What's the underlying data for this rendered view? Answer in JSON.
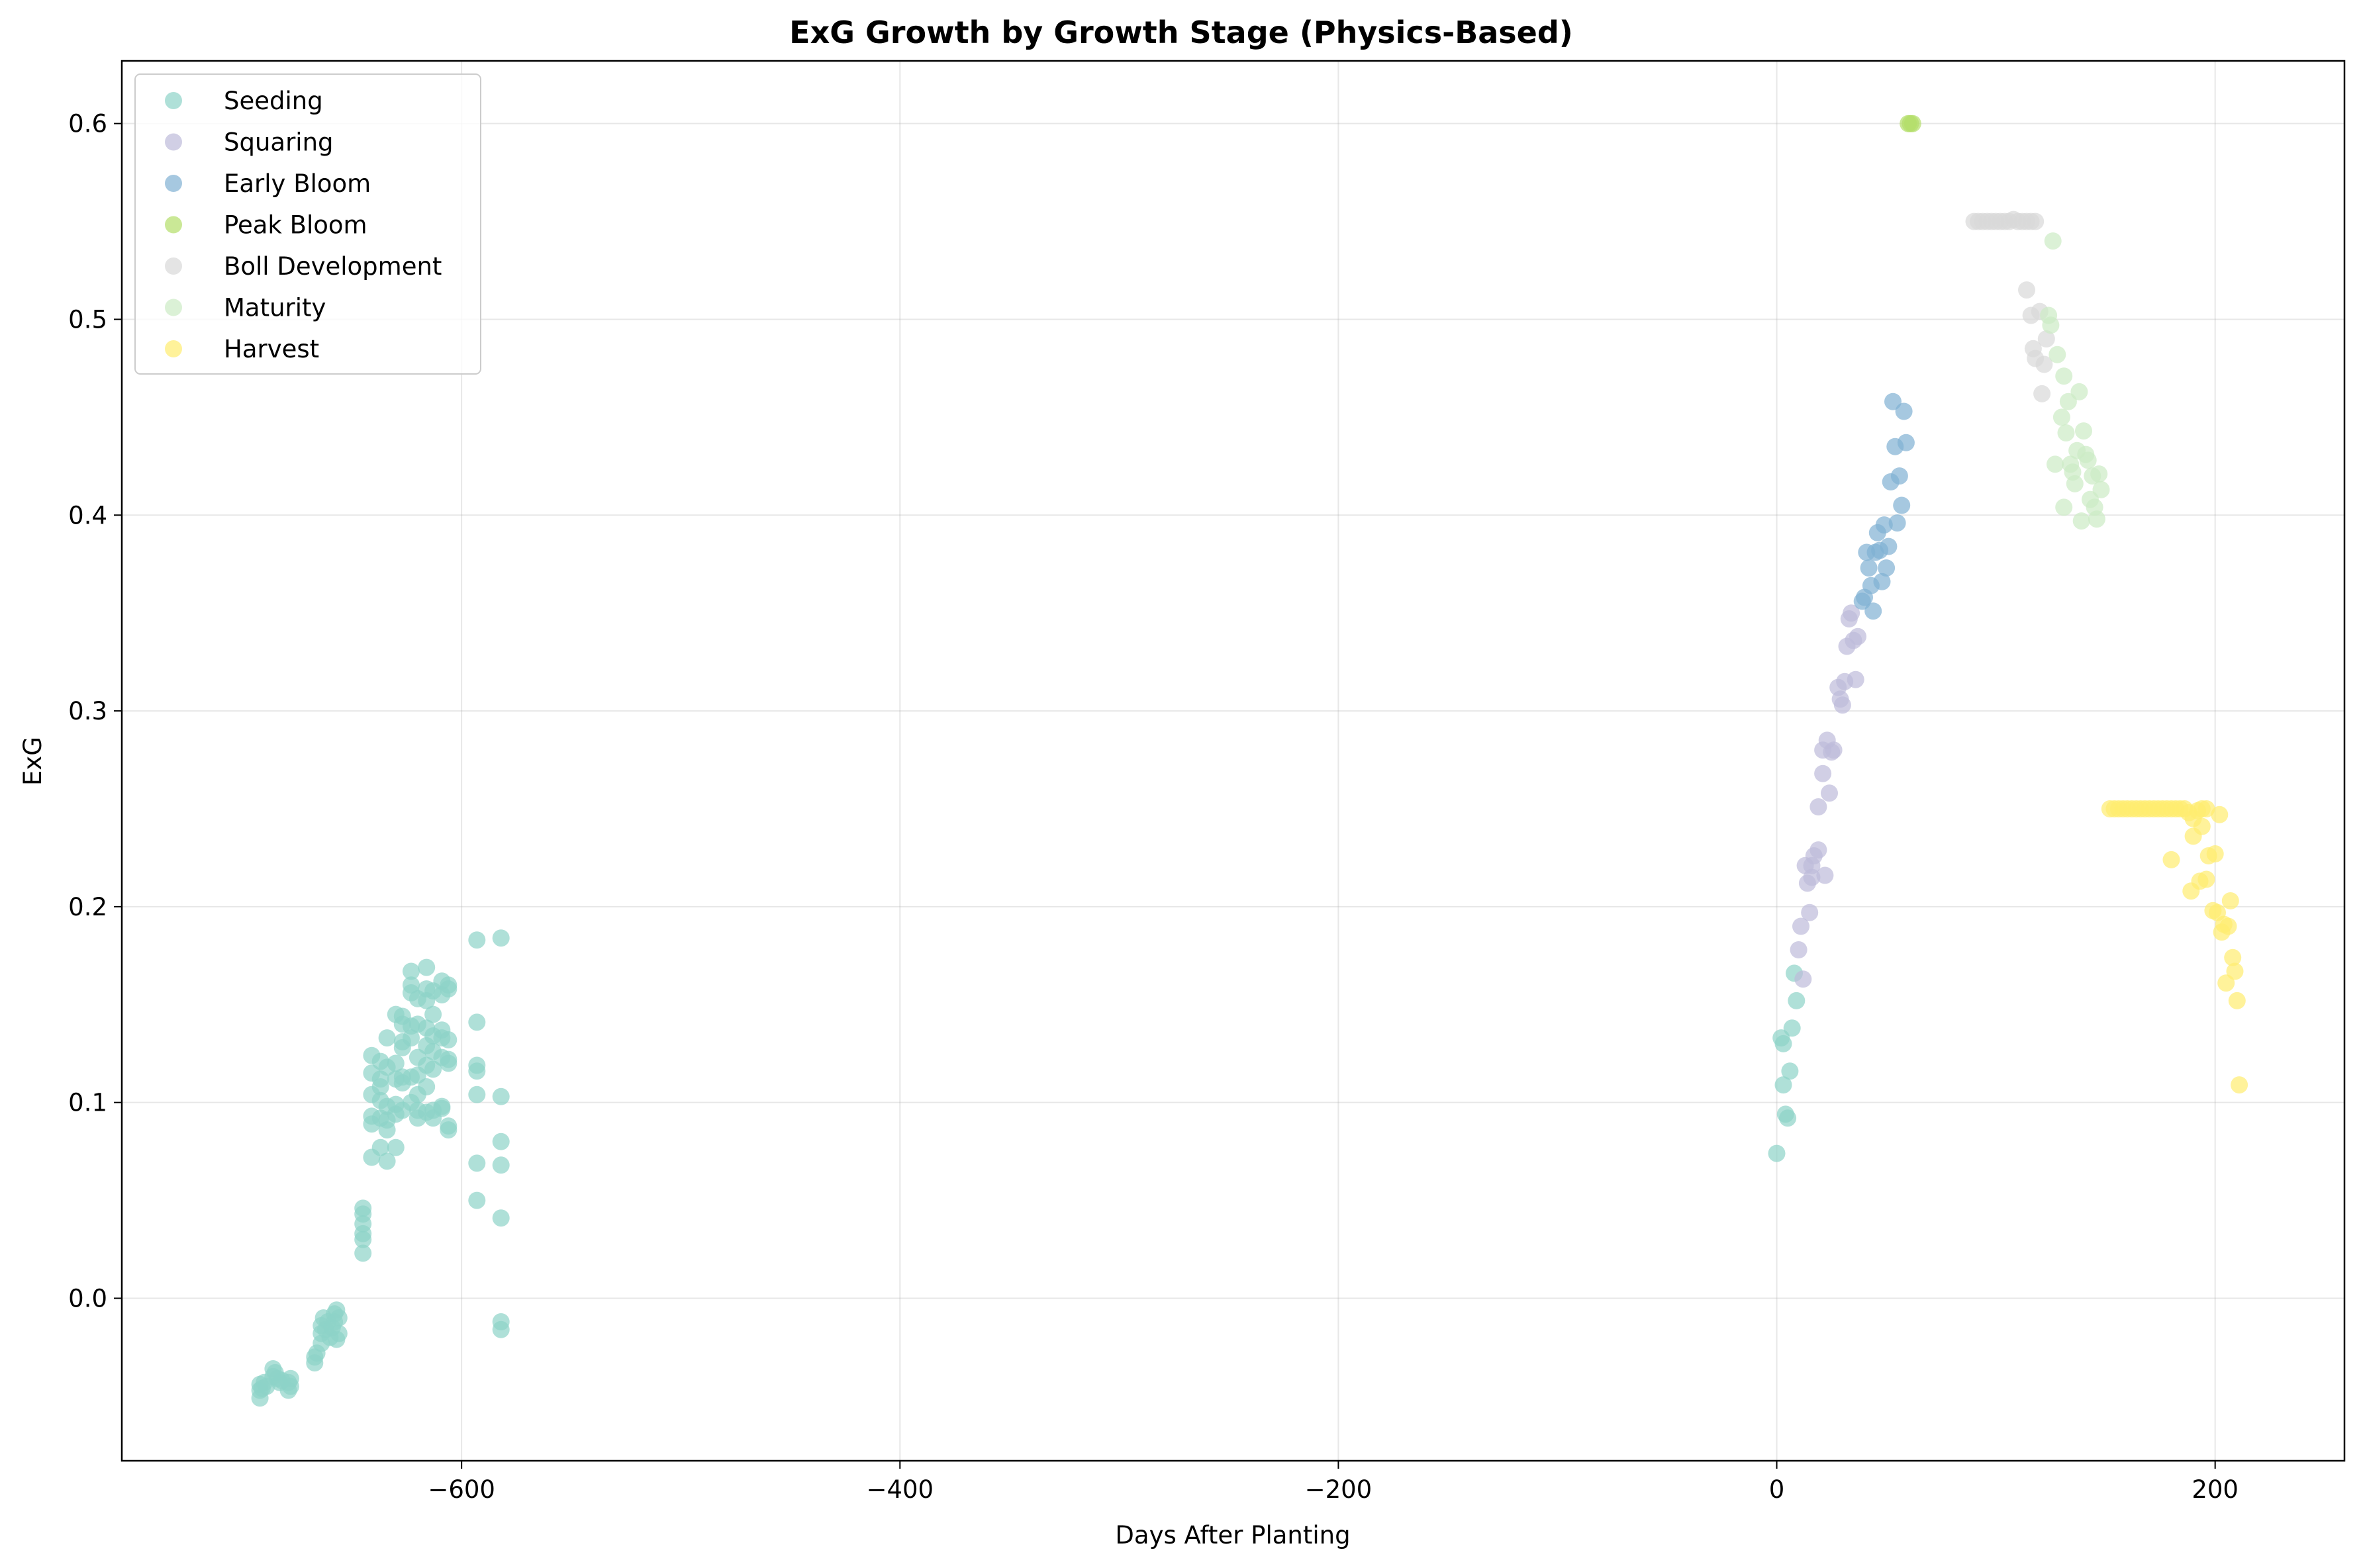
{
  "chart_data": {
    "type": "scatter",
    "title": "ExG Growth by Growth Stage (Physics-Based)",
    "xlabel": "Days After Planting",
    "ylabel": "ExG",
    "xlim": [
      -755,
      259
    ],
    "ylim": [
      -0.083,
      0.632
    ],
    "xticks": [
      -600,
      -400,
      -200,
      0,
      200
    ],
    "xtick_labels": [
      "−600",
      "−400",
      "−200",
      "0",
      "200"
    ],
    "yticks": [
      0.0,
      0.1,
      0.2,
      0.3,
      0.4,
      0.5,
      0.6
    ],
    "ytick_labels": [
      "0.0",
      "0.1",
      "0.2",
      "0.3",
      "0.4",
      "0.5",
      "0.6"
    ],
    "grid": true,
    "legend_position": "top-left",
    "series": [
      {
        "name": "Seeding",
        "color": "#8dd3c7",
        "points": [
          [
            -692,
            -0.051
          ],
          [
            -692,
            -0.047
          ],
          [
            -692,
            -0.044
          ],
          [
            -691,
            -0.046
          ],
          [
            -690,
            -0.043
          ],
          [
            -689,
            -0.045
          ],
          [
            -686,
            -0.036
          ],
          [
            -686,
            -0.04
          ],
          [
            -685,
            -0.038
          ],
          [
            -684,
            -0.041
          ],
          [
            -683,
            -0.043
          ],
          [
            -682,
            -0.042
          ],
          [
            -679,
            -0.047
          ],
          [
            -679,
            -0.043
          ],
          [
            -678,
            -0.045
          ],
          [
            -678,
            -0.041
          ],
          [
            -667,
            -0.033
          ],
          [
            -667,
            -0.03
          ],
          [
            -666,
            -0.028
          ],
          [
            -664,
            -0.023
          ],
          [
            -664,
            -0.018
          ],
          [
            -664,
            -0.014
          ],
          [
            -663,
            -0.01
          ],
          [
            -662,
            -0.016
          ],
          [
            -661,
            -0.012
          ],
          [
            -660,
            -0.02
          ],
          [
            -659,
            -0.015
          ],
          [
            -658,
            -0.012
          ],
          [
            -658,
            -0.008
          ],
          [
            -657,
            -0.006
          ],
          [
            -657,
            -0.021
          ],
          [
            -656,
            -0.018
          ],
          [
            -656,
            -0.01
          ],
          [
            -645,
            0.023
          ],
          [
            -645,
            0.03
          ],
          [
            -645,
            0.033
          ],
          [
            -645,
            0.038
          ],
          [
            -645,
            0.043
          ],
          [
            -645,
            0.046
          ],
          [
            -641,
            0.072
          ],
          [
            -641,
            0.089
          ],
          [
            -641,
            0.093
          ],
          [
            -641,
            0.104
          ],
          [
            -641,
            0.115
          ],
          [
            -641,
            0.124
          ],
          [
            -637,
            0.077
          ],
          [
            -637,
            0.092
          ],
          [
            -637,
            0.101
          ],
          [
            -637,
            0.108
          ],
          [
            -637,
            0.112
          ],
          [
            -637,
            0.121
          ],
          [
            -634,
            0.07
          ],
          [
            -634,
            0.086
          ],
          [
            -634,
            0.091
          ],
          [
            -634,
            0.098
          ],
          [
            -634,
            0.118
          ],
          [
            -634,
            0.133
          ],
          [
            -630,
            0.077
          ],
          [
            -630,
            0.094
          ],
          [
            -630,
            0.099
          ],
          [
            -630,
            0.112
          ],
          [
            -630,
            0.12
          ],
          [
            -630,
            0.145
          ],
          [
            -627,
            0.096
          ],
          [
            -627,
            0.11
          ],
          [
            -627,
            0.113
          ],
          [
            -627,
            0.128
          ],
          [
            -627,
            0.131
          ],
          [
            -627,
            0.14
          ],
          [
            -627,
            0.144
          ],
          [
            -623,
            0.1
          ],
          [
            -623,
            0.113
          ],
          [
            -623,
            0.133
          ],
          [
            -623,
            0.139
          ],
          [
            -623,
            0.156
          ],
          [
            -623,
            0.16
          ],
          [
            -623,
            0.167
          ],
          [
            -620,
            0.092
          ],
          [
            -620,
            0.096
          ],
          [
            -620,
            0.104
          ],
          [
            -620,
            0.114
          ],
          [
            -620,
            0.123
          ],
          [
            -620,
            0.14
          ],
          [
            -620,
            0.153
          ],
          [
            -616,
            0.095
          ],
          [
            -616,
            0.108
          ],
          [
            -616,
            0.119
          ],
          [
            -616,
            0.129
          ],
          [
            -616,
            0.138
          ],
          [
            -616,
            0.152
          ],
          [
            -616,
            0.158
          ],
          [
            -616,
            0.169
          ],
          [
            -613,
            0.092
          ],
          [
            -613,
            0.096
          ],
          [
            -613,
            0.117
          ],
          [
            -613,
            0.126
          ],
          [
            -613,
            0.134
          ],
          [
            -613,
            0.145
          ],
          [
            -613,
            0.157
          ],
          [
            -609,
            0.097
          ],
          [
            -609,
            0.098
          ],
          [
            -609,
            0.123
          ],
          [
            -609,
            0.133
          ],
          [
            -609,
            0.137
          ],
          [
            -609,
            0.155
          ],
          [
            -609,
            0.162
          ],
          [
            -606,
            0.086
          ],
          [
            -606,
            0.088
          ],
          [
            -606,
            0.12
          ],
          [
            -606,
            0.122
          ],
          [
            -606,
            0.132
          ],
          [
            -606,
            0.158
          ],
          [
            -606,
            0.16
          ],
          [
            -593,
            0.05
          ],
          [
            -593,
            0.069
          ],
          [
            -593,
            0.104
          ],
          [
            -593,
            0.116
          ],
          [
            -593,
            0.119
          ],
          [
            -593,
            0.141
          ],
          [
            -593,
            0.183
          ],
          [
            -582,
            -0.016
          ],
          [
            -582,
            -0.012
          ],
          [
            -582,
            0.041
          ],
          [
            -582,
            0.068
          ],
          [
            -582,
            0.08
          ],
          [
            -582,
            0.103
          ],
          [
            -582,
            0.184
          ],
          [
            0,
            0.074
          ],
          [
            2,
            0.133
          ],
          [
            3,
            0.13
          ],
          [
            3,
            0.109
          ],
          [
            4,
            0.094
          ],
          [
            5,
            0.092
          ],
          [
            6,
            0.116
          ],
          [
            7,
            0.138
          ],
          [
            8,
            0.166
          ],
          [
            9,
            0.152
          ]
        ]
      },
      {
        "name": "Squaring",
        "color": "#bebada",
        "points": [
          [
            10,
            0.178
          ],
          [
            11,
            0.19
          ],
          [
            12,
            0.163
          ],
          [
            13,
            0.221
          ],
          [
            14,
            0.212
          ],
          [
            15,
            0.197
          ],
          [
            16,
            0.215
          ],
          [
            16,
            0.221
          ],
          [
            17,
            0.226
          ],
          [
            19,
            0.229
          ],
          [
            19,
            0.251
          ],
          [
            21,
            0.268
          ],
          [
            21,
            0.28
          ],
          [
            22,
            0.216
          ],
          [
            23,
            0.285
          ],
          [
            24,
            0.258
          ],
          [
            25,
            0.279
          ],
          [
            26,
            0.28
          ],
          [
            28,
            0.312
          ],
          [
            29,
            0.306
          ],
          [
            30,
            0.303
          ],
          [
            31,
            0.315
          ],
          [
            32,
            0.333
          ],
          [
            33,
            0.347
          ],
          [
            34,
            0.35
          ],
          [
            35,
            0.336
          ],
          [
            36,
            0.316
          ],
          [
            37,
            0.338
          ]
        ]
      },
      {
        "name": "Early Bloom",
        "color": "#80b1d3",
        "points": [
          [
            39,
            0.356
          ],
          [
            40,
            0.358
          ],
          [
            41,
            0.381
          ],
          [
            42,
            0.373
          ],
          [
            43,
            0.364
          ],
          [
            44,
            0.351
          ],
          [
            45,
            0.381
          ],
          [
            46,
            0.391
          ],
          [
            47,
            0.382
          ],
          [
            48,
            0.366
          ],
          [
            49,
            0.395
          ],
          [
            50,
            0.373
          ],
          [
            51,
            0.384
          ],
          [
            52,
            0.417
          ],
          [
            53,
            0.458
          ],
          [
            54,
            0.435
          ],
          [
            55,
            0.396
          ],
          [
            56,
            0.42
          ],
          [
            57,
            0.405
          ],
          [
            58,
            0.453
          ],
          [
            59,
            0.437
          ]
        ]
      },
      {
        "name": "Peak Bloom",
        "color": "#b3de69",
        "points": [
          [
            60,
            0.6
          ],
          [
            61,
            0.6
          ],
          [
            62,
            0.6
          ]
        ]
      },
      {
        "name": "Boll Development",
        "color": "#d9d9d9",
        "points": [
          [
            90,
            0.55
          ],
          [
            92,
            0.55
          ],
          [
            94,
            0.55
          ],
          [
            96,
            0.55
          ],
          [
            98,
            0.55
          ],
          [
            100,
            0.55
          ],
          [
            102,
            0.55
          ],
          [
            104,
            0.55
          ],
          [
            106,
            0.55
          ],
          [
            108,
            0.551
          ],
          [
            110,
            0.55
          ],
          [
            112,
            0.55
          ],
          [
            114,
            0.55
          ],
          [
            116,
            0.55
          ],
          [
            118,
            0.55
          ],
          [
            114,
            0.515
          ],
          [
            116,
            0.502
          ],
          [
            117,
            0.485
          ],
          [
            118,
            0.48
          ],
          [
            120,
            0.504
          ],
          [
            121,
            0.462
          ],
          [
            122,
            0.477
          ],
          [
            123,
            0.49
          ]
        ]
      },
      {
        "name": "Maturity",
        "color": "#ccebc5",
        "points": [
          [
            124,
            0.502
          ],
          [
            125,
            0.497
          ],
          [
            126,
            0.54
          ],
          [
            127,
            0.426
          ],
          [
            128,
            0.482
          ],
          [
            130,
            0.45
          ],
          [
            131,
            0.471
          ],
          [
            132,
            0.442
          ],
          [
            133,
            0.458
          ],
          [
            134,
            0.426
          ],
          [
            135,
            0.422
          ],
          [
            136,
            0.416
          ],
          [
            137,
            0.433
          ],
          [
            138,
            0.463
          ],
          [
            139,
            0.397
          ],
          [
            140,
            0.443
          ],
          [
            141,
            0.431
          ],
          [
            142,
            0.428
          ],
          [
            143,
            0.408
          ],
          [
            144,
            0.42
          ],
          [
            145,
            0.404
          ],
          [
            146,
            0.398
          ],
          [
            147,
            0.421
          ],
          [
            148,
            0.413
          ],
          [
            131,
            0.404
          ]
        ]
      },
      {
        "name": "Harvest",
        "color": "#ffed6f",
        "points": [
          [
            152,
            0.25
          ],
          [
            154,
            0.25
          ],
          [
            156,
            0.25
          ],
          [
            158,
            0.25
          ],
          [
            160,
            0.25
          ],
          [
            162,
            0.25
          ],
          [
            164,
            0.25
          ],
          [
            166,
            0.25
          ],
          [
            168,
            0.25
          ],
          [
            170,
            0.25
          ],
          [
            172,
            0.25
          ],
          [
            174,
            0.25
          ],
          [
            176,
            0.25
          ],
          [
            178,
            0.25
          ],
          [
            180,
            0.25
          ],
          [
            182,
            0.25
          ],
          [
            184,
            0.25
          ],
          [
            186,
            0.25
          ],
          [
            188,
            0.248
          ],
          [
            190,
            0.245
          ],
          [
            192,
            0.249
          ],
          [
            194,
            0.25
          ],
          [
            196,
            0.25
          ],
          [
            202,
            0.247
          ],
          [
            180,
            0.224
          ],
          [
            189,
            0.208
          ],
          [
            190,
            0.236
          ],
          [
            193,
            0.213
          ],
          [
            194,
            0.241
          ],
          [
            196,
            0.214
          ],
          [
            197,
            0.226
          ],
          [
            199,
            0.198
          ],
          [
            200,
            0.227
          ],
          [
            201,
            0.197
          ],
          [
            203,
            0.187
          ],
          [
            204,
            0.191
          ],
          [
            205,
            0.161
          ],
          [
            206,
            0.19
          ],
          [
            207,
            0.203
          ],
          [
            208,
            0.174
          ],
          [
            209,
            0.167
          ],
          [
            210,
            0.152
          ],
          [
            211,
            0.109
          ]
        ]
      }
    ]
  }
}
